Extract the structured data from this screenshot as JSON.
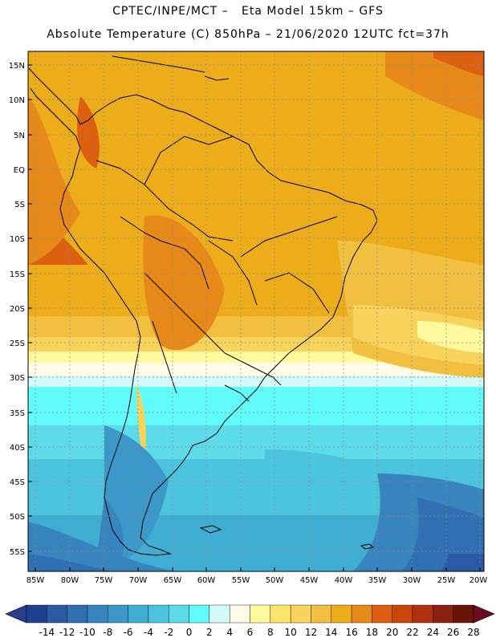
{
  "header": {
    "line1": "CPTEC/INPE/MCT –   Eta Model 15km – GFS",
    "line2": "Absolute Temperature (C) 850hPa – 21/06/2020 12UTC fct=37h"
  },
  "map": {
    "lat_labels": [
      "15N",
      "10N",
      "5N",
      "EQ",
      "5S",
      "10S",
      "15S",
      "20S",
      "25S",
      "30S",
      "35S",
      "40S",
      "45S",
      "50S",
      "55S"
    ],
    "lon_labels": [
      "85W",
      "80W",
      "75W",
      "70W",
      "65W",
      "60W",
      "55W",
      "50W",
      "45W",
      "40W",
      "35W",
      "30W",
      "25W",
      "20W"
    ]
  },
  "colorbar": {
    "labels": [
      "-14",
      "-12",
      "-10",
      "-8",
      "-6",
      "-4",
      "-2",
      "0",
      "2",
      "4",
      "6",
      "8",
      "10",
      "12",
      "14",
      "16",
      "18",
      "20",
      "22",
      "24",
      "26",
      "28"
    ],
    "colors": [
      "#1f3f8f",
      "#2a5aa3",
      "#306fb2",
      "#3784bf",
      "#3b98c8",
      "#40aed2",
      "#4cc4de",
      "#5ddbe8",
      "#62fbfb",
      "#d4fafa",
      "#fffbe6",
      "#fffa9e",
      "#fbe66b",
      "#f9d45c",
      "#f2c040",
      "#edac1a",
      "#e88a1a",
      "#dc6010",
      "#c8460a",
      "#b03010",
      "#8a2010",
      "#6a1408"
    ],
    "under_color": "#2b3d8f",
    "over_color": "#6b0a20"
  }
}
